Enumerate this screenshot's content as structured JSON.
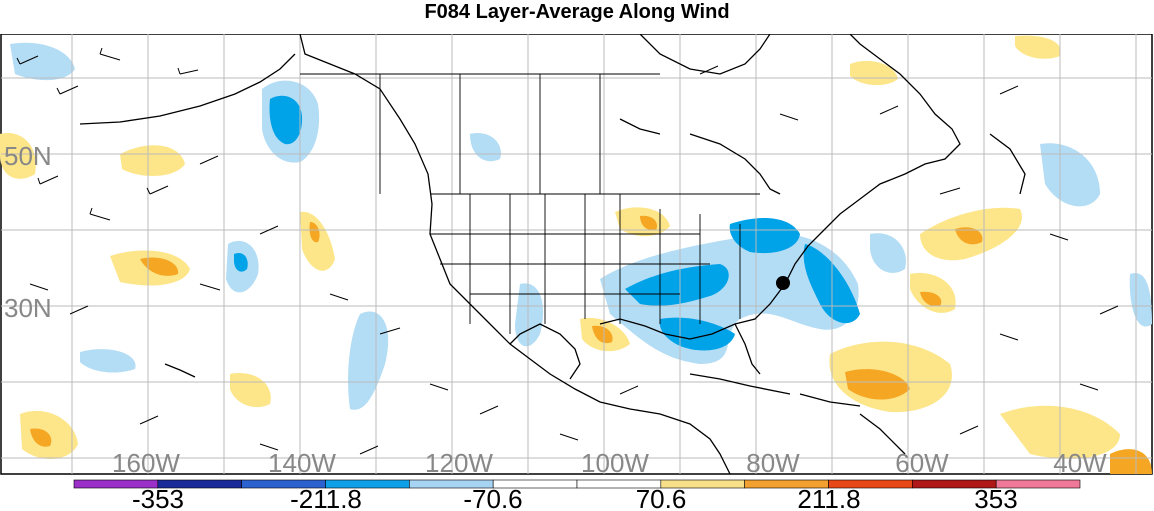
{
  "title": "F084 Layer-Average Along Wind",
  "map": {
    "lat_labels": [
      "50N",
      "30N"
    ],
    "lon_labels": [
      "160W",
      "140W",
      "120W",
      "100W",
      "80W",
      "60W",
      "40W"
    ],
    "features": [
      "coastline-north-america",
      "state-borders",
      "province-borders",
      "hurricane-marker"
    ]
  },
  "colorbar": {
    "colors": [
      "#9b30c8",
      "#1a2a9a",
      "#2c62d0",
      "#10a0e8",
      "#a8d4f4",
      "#ffffff",
      "#ffffff",
      "#f8e08a",
      "#f2a030",
      "#e84818",
      "#b01818",
      "#f07898"
    ],
    "labels": [
      "-353",
      "-211.8",
      "-70.6",
      "70.6",
      "211.8",
      "353"
    ]
  },
  "colors": {
    "neg_light": "#b3dcf5",
    "neg_mid": "#00a2e8",
    "pos_light": "#fde68a",
    "pos_mid": "#f5a623",
    "grid": "#bbbbbb",
    "label": "#888888"
  }
}
